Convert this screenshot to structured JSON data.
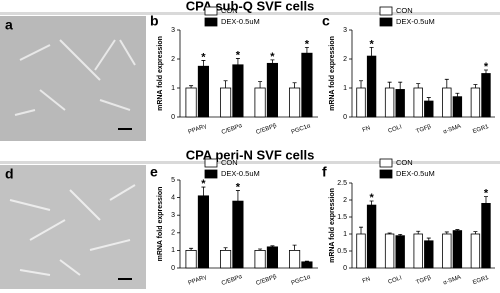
{
  "figure": {
    "sections": [
      "CPA sub-Q SVF cells",
      "CPA peri-N SVF cells"
    ],
    "panels": [
      "a",
      "b",
      "c",
      "d",
      "e",
      "f"
    ]
  },
  "chart_data": [
    {
      "type": "bar",
      "ylabel": "mRNA fold expression",
      "categories": [
        "PPARγ",
        "C/EBPα",
        "C/EBPβ",
        "PGC1α"
      ],
      "series": [
        {
          "name": "CON",
          "color": "#ffffff",
          "values": [
            1.0,
            1.0,
            1.0,
            1.0
          ],
          "errors": [
            0.08,
            0.25,
            0.22,
            0.18
          ],
          "significance": [
            null,
            null,
            null,
            null
          ]
        },
        {
          "name": "DEX-0.5uM",
          "color": "#000000",
          "values": [
            1.75,
            1.8,
            1.85,
            2.2
          ],
          "errors": [
            0.2,
            0.22,
            0.12,
            0.2
          ],
          "significance": [
            "*",
            "*",
            "*",
            "*"
          ]
        }
      ],
      "ylim": [
        0,
        3
      ],
      "yticks": [
        0,
        1,
        2,
        3
      ]
    },
    {
      "type": "bar",
      "ylabel": "mRNA fold expression",
      "categories": [
        "FN",
        "COLI",
        "TGFβ",
        "α-SMA",
        "EGR1"
      ],
      "series": [
        {
          "name": "CON",
          "color": "#ffffff",
          "values": [
            1.0,
            1.0,
            1.0,
            1.0,
            1.0
          ],
          "errors": [
            0.25,
            0.2,
            0.15,
            0.3,
            0.12
          ],
          "significance": [
            null,
            null,
            null,
            null,
            null
          ]
        },
        {
          "name": "DEX-0.5uM",
          "color": "#000000",
          "values": [
            2.1,
            0.95,
            0.55,
            0.7,
            1.5
          ],
          "errors": [
            0.3,
            0.25,
            0.12,
            0.12,
            0.12
          ],
          "significance": [
            "*",
            null,
            null,
            null,
            "*"
          ]
        }
      ],
      "ylim": [
        0,
        3
      ],
      "yticks": [
        0,
        1,
        2,
        3
      ]
    },
    {
      "type": "bar",
      "ylabel": "mRNA fold expression",
      "categories": [
        "PPARγ",
        "C/EBPα",
        "C/EBPβ",
        "PGC1α"
      ],
      "series": [
        {
          "name": "CON",
          "color": "#ffffff",
          "values": [
            1.0,
            1.0,
            1.0,
            1.0
          ],
          "errors": [
            0.12,
            0.15,
            0.08,
            0.3
          ],
          "significance": [
            null,
            null,
            null,
            null
          ]
        },
        {
          "name": "DEX-0.5uM",
          "color": "#000000",
          "values": [
            4.1,
            3.8,
            1.2,
            0.35
          ],
          "errors": [
            0.5,
            0.6,
            0.06,
            0.04
          ],
          "significance": [
            "*",
            "*",
            null,
            null
          ]
        }
      ],
      "ylim": [
        0,
        5
      ],
      "yticks": [
        0,
        1,
        2,
        3,
        4,
        5
      ]
    },
    {
      "type": "bar",
      "ylabel": "mRNA fold expression",
      "categories": [
        "FN",
        "COLI",
        "TGFβ",
        "α-SMA",
        "EGR1"
      ],
      "series": [
        {
          "name": "CON",
          "color": "#ffffff",
          "values": [
            1.0,
            1.0,
            1.0,
            1.0,
            1.0
          ],
          "errors": [
            0.2,
            0.03,
            0.08,
            0.06,
            0.07
          ],
          "significance": [
            null,
            null,
            null,
            null,
            null
          ]
        },
        {
          "name": "DEX-0.5uM",
          "color": "#000000",
          "values": [
            1.85,
            0.95,
            0.8,
            1.1,
            1.9
          ],
          "errors": [
            0.12,
            0.04,
            0.08,
            0.03,
            0.2
          ],
          "significance": [
            "*",
            null,
            null,
            null,
            "*"
          ]
        }
      ],
      "ylim": [
        0,
        2.5
      ],
      "yticks": [
        0,
        0.5,
        1,
        1.5,
        2,
        2.5
      ]
    }
  ]
}
